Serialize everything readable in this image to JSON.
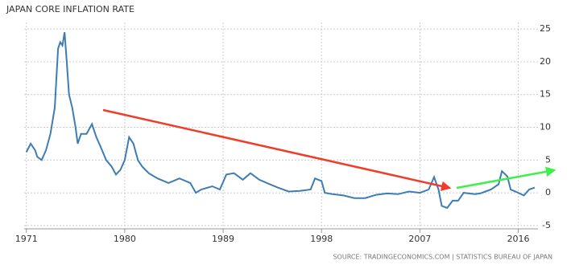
{
  "chart_data": {
    "type": "line",
    "title": "JAPAN CORE INFLATION RATE",
    "source": "SOURCE: TRADINGECONOMICS.COM | STATISTICS BUREAU OF JAPAN",
    "color": "#3d7db3",
    "x": [
      1971.0,
      1971.4,
      1971.8,
      1972.0,
      1972.4,
      1972.8,
      1973.2,
      1973.6,
      1973.9,
      1974.1,
      1974.3,
      1974.5,
      1974.7,
      1974.9,
      1975.2,
      1975.5,
      1975.7,
      1976.0,
      1976.5,
      1977.0,
      1977.4,
      1977.8,
      1978.3,
      1978.8,
      1979.2,
      1979.6,
      1980.0,
      1980.4,
      1980.8,
      1981.2,
      1981.6,
      1982.2,
      1983.0,
      1984.0,
      1985.0,
      1986.0,
      1986.5,
      1987.0,
      1988.0,
      1988.7,
      1989.3,
      1990.0,
      1990.8,
      1991.5,
      1992.3,
      1993.0,
      1994.0,
      1995.0,
      1996.0,
      1997.0,
      1997.4,
      1998.0,
      1998.3,
      1999.0,
      2000.0,
      2001.0,
      2002.0,
      2003.0,
      2004.0,
      2005.0,
      2006.0,
      2007.0,
      2007.8,
      2008.3,
      2008.7,
      2009.0,
      2009.5,
      2010.0,
      2010.5,
      2011.0,
      2012.0,
      2012.5,
      2013.0,
      2013.5,
      2014.2,
      2014.5,
      2015.0,
      2015.3,
      2016.0,
      2016.5,
      2017.0,
      2017.5
    ],
    "values": [
      6.2,
      7.5,
      6.5,
      5.5,
      5.0,
      6.5,
      9,
      13,
      22,
      23,
      22.5,
      24.5,
      20,
      15,
      13,
      10,
      7.5,
      9,
      9,
      10.5,
      8.5,
      7,
      5,
      4,
      2.8,
      3.5,
      5,
      8.5,
      7.5,
      5,
      4,
      3,
      2.2,
      1.5,
      2.2,
      1.5,
      0,
      0.5,
      1,
      0.5,
      2.8,
      3,
      2,
      3,
      2,
      1.5,
      0.8,
      0.2,
      0.3,
      0.5,
      2.2,
      1.8,
      0,
      -0.2,
      -0.4,
      -0.8,
      -0.8,
      -0.3,
      -0.1,
      -0.2,
      0.2,
      0,
      0.5,
      2.4,
      0.5,
      -2,
      -2.3,
      -1.2,
      -1.2,
      0,
      -0.2,
      -0.1,
      0.2,
      0.5,
      1.3,
      3.3,
      2.5,
      0.5,
      0,
      -0.4,
      0.5,
      0.8
    ],
    "xlim": [
      1970.8,
      2017.8
    ],
    "xticks": [
      1971,
      1980,
      1989,
      1998,
      2007,
      2016
    ],
    "ylim": [
      -5.5,
      26
    ],
    "yticks": [
      -5,
      0,
      5,
      10,
      15,
      20,
      25
    ],
    "grid": true
  }
}
